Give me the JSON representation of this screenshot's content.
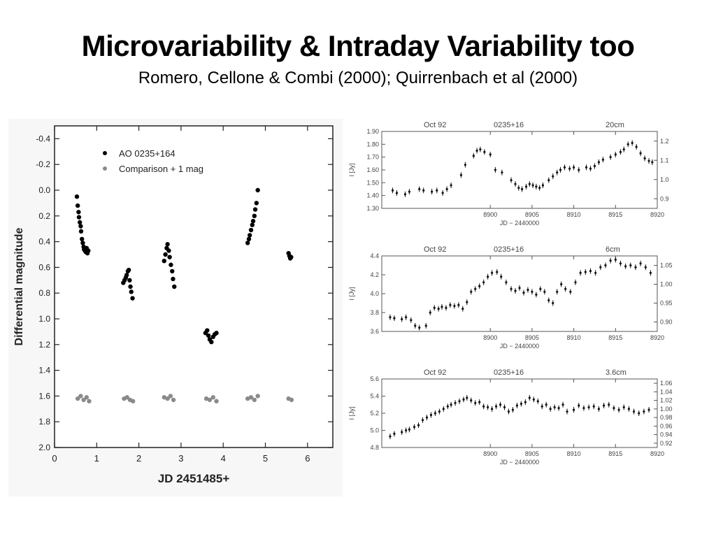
{
  "slide": {
    "title": "Microvariability & Intraday Variability too",
    "subtitle": "Romero, Cellone & Combi (2000); Quirrenbach et al (2000)"
  },
  "chart_data": [
    {
      "type": "scatter",
      "xlabel": "JD 2451485+",
      "ylabel": "Differential magnitude",
      "xlim": [
        0,
        6.6
      ],
      "ylim": [
        2.0,
        -0.5
      ],
      "y_inverted": true,
      "xticks": [
        "0",
        "1",
        "2",
        "3",
        "4",
        "5",
        "6"
      ],
      "yticks": [
        "-0.4",
        "-0.2",
        "0.0",
        "0.2",
        "0.4",
        "0.6",
        "0.8",
        "1.0",
        "1.2",
        "1.4",
        "1.6",
        "1.8",
        "2.0"
      ],
      "legend_position": "top-left",
      "series": [
        {
          "name": "AO 0235+164",
          "color": "#000000",
          "x": [
            0.53,
            0.55,
            0.57,
            0.58,
            0.6,
            0.62,
            0.63,
            0.65,
            0.67,
            0.69,
            0.7,
            0.72,
            0.74,
            0.76,
            0.78,
            0.8,
            1.63,
            1.66,
            1.69,
            1.71,
            1.74,
            1.76,
            1.78,
            1.8,
            1.82,
            1.85,
            2.6,
            2.63,
            2.66,
            2.68,
            2.71,
            2.73,
            2.76,
            2.79,
            2.81,
            2.84,
            3.58,
            3.62,
            3.65,
            3.68,
            3.72,
            3.76,
            3.8,
            3.84,
            4.58,
            4.61,
            4.63,
            4.66,
            4.69,
            4.71,
            4.74,
            4.76,
            4.79,
            4.82,
            5.55,
            5.57,
            5.59,
            5.61
          ],
          "y": [
            0.05,
            0.12,
            0.17,
            0.21,
            0.25,
            0.28,
            0.32,
            0.38,
            0.41,
            0.44,
            0.46,
            0.47,
            0.48,
            0.45,
            0.49,
            0.47,
            0.72,
            0.7,
            0.68,
            0.66,
            0.63,
            0.62,
            0.7,
            0.75,
            0.79,
            0.84,
            0.55,
            0.5,
            0.45,
            0.42,
            0.47,
            0.52,
            0.58,
            0.63,
            0.69,
            0.75,
            1.11,
            1.09,
            1.13,
            1.16,
            1.18,
            1.14,
            1.12,
            1.11,
            0.41,
            0.38,
            0.35,
            0.31,
            0.27,
            0.24,
            0.2,
            0.15,
            0.1,
            0.0,
            0.49,
            0.51,
            0.53,
            0.52
          ]
        },
        {
          "name": "Comparison + 1 mag",
          "color": "#8a8a8a",
          "x": [
            0.55,
            0.62,
            0.69,
            0.76,
            0.82,
            1.65,
            1.72,
            1.79,
            1.86,
            2.6,
            2.68,
            2.75,
            2.82,
            3.6,
            3.68,
            3.76,
            3.84,
            4.58,
            4.66,
            4.74,
            4.82,
            5.55,
            5.62
          ],
          "y": [
            1.62,
            1.6,
            1.63,
            1.61,
            1.64,
            1.62,
            1.61,
            1.63,
            1.64,
            1.61,
            1.62,
            1.6,
            1.63,
            1.62,
            1.63,
            1.61,
            1.64,
            1.62,
            1.61,
            1.63,
            1.6,
            1.62,
            1.63
          ]
        }
      ]
    },
    {
      "type": "scatter",
      "title_left": "Oct 92",
      "title_center": "0235+16",
      "title_right": "20cm",
      "xlabel": "JD − 2440000",
      "ylabel": "I [Jy]",
      "ylabel_right": "I / ⟨I⟩",
      "xlim": [
        8887,
        8920
      ],
      "ylim": [
        1.3,
        1.9
      ],
      "xticks": [
        "8900",
        "8905",
        "8910",
        "8915",
        "8920"
      ],
      "yticks": [
        "1.30",
        "1.40",
        "1.50",
        "1.60",
        "1.70",
        "1.80",
        "1.90"
      ],
      "yticks_right": [
        "0.9",
        "1.0",
        "1.1",
        "1.2"
      ],
      "series": [
        {
          "x": [
            8888.3,
            8888.8,
            8889.8,
            8890.3,
            8891.5,
            8892.0,
            8893.0,
            8893.6,
            8894.3,
            8894.8,
            8895.3,
            8896.5,
            8897.0,
            8898.0,
            8898.4,
            8898.8,
            8899.3,
            8900.0,
            8900.6,
            8901.4,
            8902.5,
            8903.0,
            8903.4,
            8903.8,
            8904.3,
            8904.7,
            8905.1,
            8905.5,
            8905.9,
            8906.3,
            8907.0,
            8907.5,
            8908.0,
            8908.4,
            8908.9,
            8909.5,
            8910.0,
            8910.6,
            8911.5,
            8912.0,
            8912.5,
            8913.0,
            8913.5,
            8914.4,
            8915.0,
            8915.6,
            8916.0,
            8916.5,
            8917.0,
            8917.5,
            8918.0,
            8918.5,
            8919.0,
            8919.4
          ],
          "y": [
            1.44,
            1.42,
            1.41,
            1.43,
            1.45,
            1.44,
            1.43,
            1.44,
            1.42,
            1.45,
            1.48,
            1.56,
            1.64,
            1.71,
            1.75,
            1.76,
            1.74,
            1.72,
            1.6,
            1.58,
            1.52,
            1.49,
            1.46,
            1.45,
            1.47,
            1.49,
            1.48,
            1.47,
            1.46,
            1.48,
            1.52,
            1.55,
            1.58,
            1.6,
            1.62,
            1.61,
            1.62,
            1.6,
            1.62,
            1.61,
            1.63,
            1.66,
            1.68,
            1.7,
            1.72,
            1.74,
            1.76,
            1.8,
            1.81,
            1.78,
            1.73,
            1.69,
            1.67,
            1.66
          ]
        }
      ]
    },
    {
      "type": "scatter",
      "title_left": "Oct 92",
      "title_center": "0235+16",
      "title_right": "6cm",
      "xlabel": "JD − 2440000",
      "ylabel": "I [Jy]",
      "ylabel_right": "I / ⟨I⟩",
      "xlim": [
        8887,
        8920
      ],
      "ylim": [
        3.6,
        4.4
      ],
      "xticks": [
        "8900",
        "8905",
        "8910",
        "8915",
        "8920"
      ],
      "yticks": [
        "3.6",
        "3.8",
        "4.0",
        "4.2",
        "4.4"
      ],
      "yticks_right": [
        "0.90",
        "0.95",
        "1.00",
        "1.05"
      ],
      "series": [
        {
          "x": [
            8888.0,
            8888.5,
            8889.4,
            8889.9,
            8890.5,
            8891.0,
            8891.5,
            8892.3,
            8892.8,
            8893.3,
            8893.8,
            8894.2,
            8894.7,
            8895.2,
            8895.7,
            8896.2,
            8896.7,
            8897.2,
            8897.7,
            8898.2,
            8898.7,
            8899.2,
            8899.7,
            8900.2,
            8900.8,
            8901.3,
            8901.9,
            8902.5,
            8903.0,
            8903.5,
            8904.0,
            8904.5,
            8905.0,
            8905.5,
            8906.0,
            8906.5,
            8907.0,
            8907.5,
            8908.0,
            8908.5,
            8909.0,
            8909.6,
            8910.2,
            8910.8,
            8911.4,
            8912.0,
            8912.6,
            8913.2,
            8913.8,
            8914.4,
            8915.0,
            8915.6,
            8916.2,
            8916.8,
            8917.4,
            8918.0,
            8918.6,
            8919.2
          ],
          "y": [
            3.75,
            3.74,
            3.73,
            3.75,
            3.72,
            3.66,
            3.64,
            3.66,
            3.8,
            3.85,
            3.84,
            3.86,
            3.85,
            3.88,
            3.87,
            3.88,
            3.84,
            3.91,
            4.02,
            4.05,
            4.08,
            4.12,
            4.18,
            4.22,
            4.23,
            4.18,
            4.12,
            4.05,
            4.03,
            4.06,
            4.01,
            4.04,
            4.02,
            3.99,
            4.05,
            4.02,
            3.93,
            3.9,
            4.02,
            4.1,
            4.05,
            4.02,
            4.12,
            4.22,
            4.23,
            4.24,
            4.22,
            4.28,
            4.3,
            4.35,
            4.36,
            4.32,
            4.29,
            4.3,
            4.28,
            4.32,
            4.28,
            4.22
          ]
        }
      ]
    },
    {
      "type": "scatter",
      "title_left": "Oct 92",
      "title_center": "0235+16",
      "title_right": "3.6cm",
      "xlabel": "JD − 2440000",
      "ylabel": "I [Jy]",
      "ylabel_right": "I / ⟨I⟩",
      "xlim": [
        8887,
        8920
      ],
      "ylim": [
        4.8,
        5.6
      ],
      "xticks": [
        "8900",
        "8905",
        "8910",
        "8915",
        "8920"
      ],
      "yticks": [
        "4.8",
        "5.0",
        "5.2",
        "5.4",
        "5.6"
      ],
      "yticks_right": [
        "0.92",
        "0.94",
        "0.96",
        "0.98",
        "1.00",
        "1.02",
        "1.04",
        "1.06"
      ],
      "series": [
        {
          "x": [
            8888.0,
            8888.5,
            8889.4,
            8889.9,
            8890.3,
            8890.9,
            8891.4,
            8891.9,
            8892.4,
            8892.9,
            8893.4,
            8893.9,
            8894.4,
            8894.9,
            8895.3,
            8895.8,
            8896.3,
            8896.8,
            8897.2,
            8897.7,
            8898.2,
            8898.7,
            8899.2,
            8899.7,
            8900.2,
            8900.7,
            8901.2,
            8901.7,
            8902.2,
            8902.7,
            8903.2,
            8903.7,
            8904.2,
            8904.7,
            8905.2,
            8905.7,
            8906.2,
            8906.7,
            8907.2,
            8907.7,
            8908.2,
            8908.7,
            8909.2,
            8910.0,
            8910.6,
            8911.2,
            8911.8,
            8912.4,
            8913.0,
            8913.6,
            8914.2,
            8914.8,
            8915.4,
            8916.0,
            8916.6,
            8917.2,
            8917.8,
            8918.4,
            8919.0
          ],
          "y": [
            4.93,
            4.96,
            4.98,
            5.0,
            5.01,
            5.04,
            5.06,
            5.12,
            5.15,
            5.18,
            5.2,
            5.22,
            5.25,
            5.28,
            5.3,
            5.32,
            5.34,
            5.36,
            5.38,
            5.35,
            5.32,
            5.33,
            5.28,
            5.27,
            5.25,
            5.28,
            5.3,
            5.27,
            5.22,
            5.24,
            5.29,
            5.31,
            5.33,
            5.38,
            5.36,
            5.34,
            5.28,
            5.3,
            5.25,
            5.27,
            5.26,
            5.3,
            5.22,
            5.24,
            5.29,
            5.26,
            5.27,
            5.28,
            5.25,
            5.29,
            5.3,
            5.26,
            5.24,
            5.27,
            5.25,
            5.22,
            5.2,
            5.22,
            5.24
          ]
        }
      ]
    }
  ]
}
